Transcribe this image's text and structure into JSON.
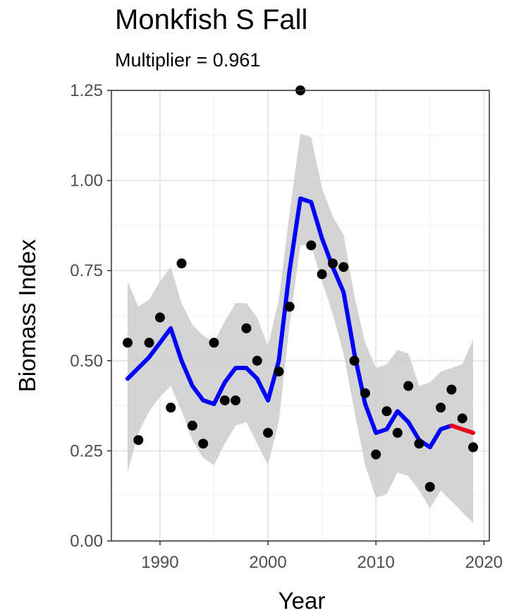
{
  "chart_data": {
    "type": "scatter",
    "title": "Monkfish S Fall",
    "subtitle": "Multiplier = 0.961",
    "xlabel": "Year",
    "ylabel": "Biomass Index",
    "xlim": [
      1985.5,
      2020.5
    ],
    "ylim": [
      0,
      1.25
    ],
    "x_ticks": [
      1990,
      2000,
      2010,
      2020
    ],
    "x_tick_labels": [
      "1990",
      "2000",
      "2010",
      "2020"
    ],
    "y_ticks": [
      0,
      0.25,
      0.5,
      0.75,
      1.0,
      1.25
    ],
    "y_tick_labels": [
      "0.00",
      "0.25",
      "0.50",
      "0.75",
      "1.00",
      "1.25"
    ],
    "grid": true,
    "points": {
      "name": "",
      "color": "#000000",
      "x": [
        1987,
        1988,
        1989,
        1990,
        1991,
        1992,
        1993,
        1994,
        1995,
        1996,
        1997,
        1998,
        1999,
        2000,
        2001,
        2002,
        2003,
        2004,
        2005,
        2006,
        2007,
        2008,
        2009,
        2010,
        2011,
        2012,
        2013,
        2014,
        2015,
        2016,
        2017,
        2018,
        2019
      ],
      "y": [
        0.55,
        0.28,
        0.55,
        0.62,
        0.37,
        0.77,
        0.32,
        0.27,
        0.55,
        0.39,
        0.39,
        0.59,
        0.5,
        0.3,
        0.47,
        0.65,
        1.25,
        0.82,
        0.74,
        0.77,
        0.76,
        0.5,
        0.41,
        0.24,
        0.36,
        0.3,
        0.43,
        0.27,
        0.15,
        0.37,
        0.42,
        0.34,
        0.26
      ]
    },
    "smooth": {
      "color": "#0000ff",
      "x": [
        1987,
        1988,
        1989,
        1990,
        1991,
        1992,
        1993,
        1994,
        1995,
        1996,
        1997,
        1998,
        1999,
        2000,
        2001,
        2002,
        2003,
        2004,
        2005,
        2006,
        2007,
        2008,
        2009,
        2010,
        2011,
        2012,
        2013,
        2014,
        2015,
        2016,
        2017
      ],
      "y": [
        0.45,
        0.48,
        0.51,
        0.55,
        0.59,
        0.5,
        0.43,
        0.39,
        0.38,
        0.44,
        0.48,
        0.48,
        0.45,
        0.39,
        0.5,
        0.75,
        0.95,
        0.94,
        0.84,
        0.76,
        0.69,
        0.52,
        0.38,
        0.3,
        0.31,
        0.36,
        0.33,
        0.28,
        0.26,
        0.31,
        0.32
      ]
    },
    "smooth_recent": {
      "color": "#e8001c",
      "x": [
        2017,
        2018,
        2019
      ],
      "y": [
        0.32,
        0.31,
        0.3
      ]
    },
    "ribbon": {
      "color": "#cccccc",
      "x": [
        1987,
        1988,
        1989,
        1990,
        1991,
        1992,
        1993,
        1994,
        1995,
        1996,
        1997,
        1998,
        1999,
        2000,
        2001,
        2002,
        2003,
        2004,
        2005,
        2006,
        2007,
        2008,
        2009,
        2010,
        2011,
        2012,
        2013,
        2014,
        2015,
        2016,
        2017,
        2018,
        2019
      ],
      "lower": [
        0.19,
        0.3,
        0.36,
        0.4,
        0.43,
        0.36,
        0.28,
        0.23,
        0.21,
        0.27,
        0.32,
        0.33,
        0.27,
        0.21,
        0.33,
        0.6,
        0.82,
        0.82,
        0.72,
        0.63,
        0.52,
        0.36,
        0.21,
        0.12,
        0.13,
        0.19,
        0.18,
        0.14,
        0.09,
        0.14,
        0.11,
        0.08,
        0.05
      ],
      "upper": [
        0.72,
        0.65,
        0.67,
        0.72,
        0.76,
        0.66,
        0.6,
        0.57,
        0.55,
        0.61,
        0.66,
        0.66,
        0.62,
        0.54,
        0.67,
        0.91,
        1.13,
        1.12,
        0.98,
        0.9,
        0.85,
        0.68,
        0.55,
        0.48,
        0.49,
        0.53,
        0.52,
        0.43,
        0.44,
        0.47,
        0.48,
        0.49,
        0.56
      ]
    }
  }
}
